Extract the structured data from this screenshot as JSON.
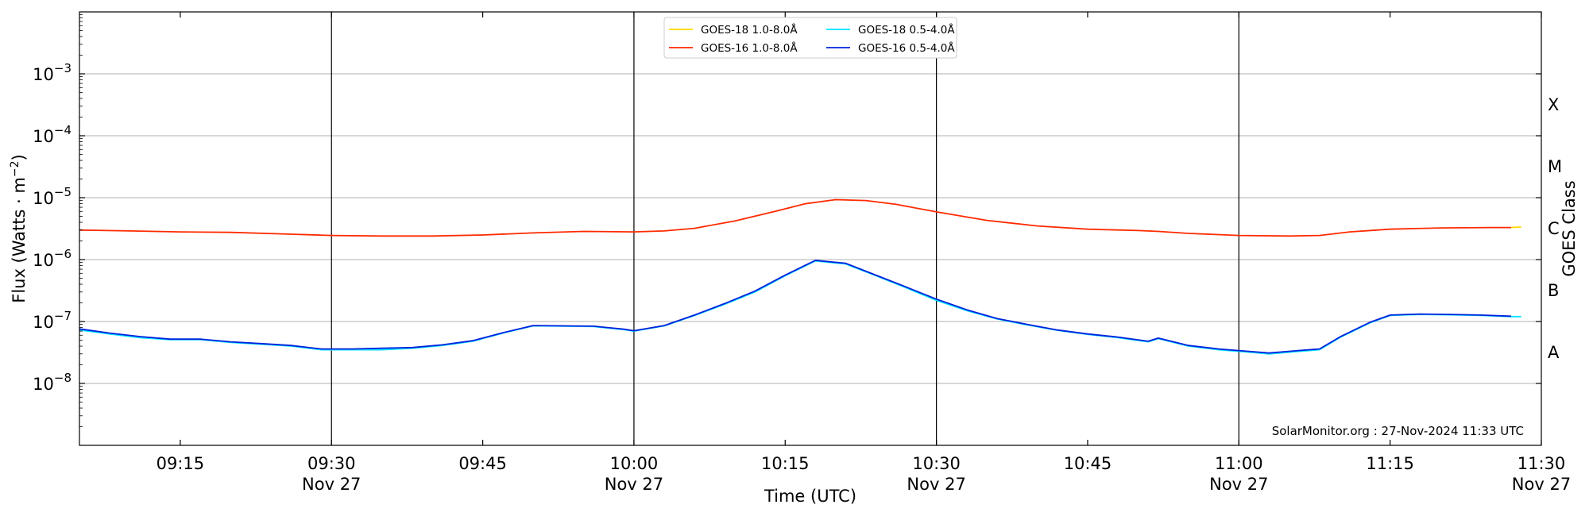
{
  "chart_data": {
    "type": "line",
    "title": "",
    "xlabel": "Time (UTC)",
    "ylabel": "Flux (Watts · m",
    "ylabel_exponent": "−2",
    "ylabel_close": ")",
    "right_ylabel": "GOES Class",
    "y_scale": "log",
    "ylim": [
      1e-09,
      0.01
    ],
    "xlim": [
      "09:05",
      "11:30"
    ],
    "y_ticks": [
      {
        "value": 1e-08,
        "base": "10",
        "exp": "−8"
      },
      {
        "value": 1e-07,
        "base": "10",
        "exp": "−7"
      },
      {
        "value": 1e-06,
        "base": "10",
        "exp": "−6"
      },
      {
        "value": 1e-05,
        "base": "10",
        "exp": "−5"
      },
      {
        "value": 0.0001,
        "base": "10",
        "exp": "−4"
      },
      {
        "value": 0.001,
        "base": "10",
        "exp": "−3"
      }
    ],
    "x_ticks": [
      {
        "time": "09:15",
        "label": "09:15",
        "date": ""
      },
      {
        "time": "09:30",
        "label": "09:30",
        "date": "Nov 27"
      },
      {
        "time": "09:45",
        "label": "09:45",
        "date": ""
      },
      {
        "time": "10:00",
        "label": "10:00",
        "date": "Nov 27"
      },
      {
        "time": "10:15",
        "label": "10:15",
        "date": ""
      },
      {
        "time": "10:30",
        "label": "10:30",
        "date": "Nov 27"
      },
      {
        "time": "10:45",
        "label": "10:45",
        "date": ""
      },
      {
        "time": "11:00",
        "label": "11:00",
        "date": "Nov 27"
      },
      {
        "time": "11:15",
        "label": "11:15",
        "date": ""
      },
      {
        "time": "11:30",
        "label": "11:30",
        "date": "Nov 27"
      }
    ],
    "vertical_lines": [
      "09:30",
      "10:00",
      "10:30",
      "11:00"
    ],
    "goes_classes": [
      {
        "label": "A",
        "min": 1e-08
      },
      {
        "label": "B",
        "min": 1e-07
      },
      {
        "label": "C",
        "min": 1e-06
      },
      {
        "label": "M",
        "min": 1e-05
      },
      {
        "label": "X",
        "min": 0.0001
      }
    ],
    "grid": "horizontal at decades",
    "legend_position": "top-center",
    "credit": "SolarMonitor.org : 27-Nov-2024 11:33 UTC",
    "series": [
      {
        "name": "GOES-18 1.0-8.0Å",
        "color": "#ffd700",
        "data": [
          [
            "11:27",
            3.3e-06
          ],
          [
            "11:28",
            3.35e-06
          ]
        ]
      },
      {
        "name": "GOES-18 0.5-4.0Å",
        "color": "#00e5ff",
        "data": [
          [
            "09:05",
            7.3e-08
          ],
          [
            "09:08",
            6.3e-08
          ],
          [
            "09:11",
            5.5e-08
          ],
          [
            "09:14",
            5.1e-08
          ],
          [
            "09:17",
            5.1e-08
          ],
          [
            "09:20",
            4.6e-08
          ],
          [
            "09:23",
            4.3e-08
          ],
          [
            "09:26",
            4e-08
          ],
          [
            "09:29",
            3.5e-08
          ],
          [
            "09:32",
            3.5e-08
          ],
          [
            "09:35",
            3.5e-08
          ],
          [
            "09:38",
            3.7e-08
          ],
          [
            "09:41",
            4.1e-08
          ],
          [
            "09:44",
            4.8e-08
          ],
          [
            "09:47",
            6.5e-08
          ],
          [
            "09:50",
            8.5e-08
          ],
          [
            "09:53",
            8.4e-08
          ],
          [
            "09:56",
            8.3e-08
          ],
          [
            "09:59",
            7.4e-08
          ],
          [
            "10:00",
            7e-08
          ],
          [
            "10:03",
            8.5e-08
          ],
          [
            "10:06",
            1.25e-07
          ],
          [
            "10:09",
            1.9e-07
          ],
          [
            "10:12",
            3e-07
          ],
          [
            "10:15",
            5.5e-07
          ],
          [
            "10:18",
            9.5e-07
          ],
          [
            "10:21",
            8.5e-07
          ],
          [
            "10:24",
            5.5e-07
          ],
          [
            "10:27",
            3.5e-07
          ],
          [
            "10:30",
            2.2e-07
          ],
          [
            "10:33",
            1.5e-07
          ],
          [
            "10:36",
            1.1e-07
          ],
          [
            "10:39",
            8.8e-08
          ],
          [
            "10:42",
            7.2e-08
          ],
          [
            "10:45",
            6.2e-08
          ],
          [
            "10:48",
            5.5e-08
          ],
          [
            "10:51",
            4.7e-08
          ],
          [
            "10:52",
            5.3e-08
          ],
          [
            "10:55",
            4e-08
          ],
          [
            "10:58",
            3.5e-08
          ],
          [
            "11:01",
            3.2e-08
          ],
          [
            "11:03",
            3e-08
          ],
          [
            "11:06",
            3.3e-08
          ],
          [
            "11:08",
            3.5e-08
          ],
          [
            "11:10",
            5.5e-08
          ],
          [
            "11:13",
            9.5e-08
          ],
          [
            "11:15",
            1.25e-07
          ],
          [
            "11:18",
            1.3e-07
          ],
          [
            "11:21",
            1.28e-07
          ],
          [
            "11:24",
            1.25e-07
          ],
          [
            "11:27",
            1.2e-07
          ],
          [
            "11:28",
            1.2e-07
          ]
        ]
      },
      {
        "name": "GOES-16 1.0-8.0Å",
        "color": "#ff2a00",
        "data": [
          [
            "09:05",
            3e-06
          ],
          [
            "09:10",
            2.9e-06
          ],
          [
            "09:15",
            2.8e-06
          ],
          [
            "09:20",
            2.75e-06
          ],
          [
            "09:25",
            2.6e-06
          ],
          [
            "09:30",
            2.45e-06
          ],
          [
            "09:35",
            2.4e-06
          ],
          [
            "09:40",
            2.4e-06
          ],
          [
            "09:45",
            2.5e-06
          ],
          [
            "09:50",
            2.7e-06
          ],
          [
            "09:55",
            2.85e-06
          ],
          [
            "10:00",
            2.8e-06
          ],
          [
            "10:03",
            2.9e-06
          ],
          [
            "10:06",
            3.2e-06
          ],
          [
            "10:10",
            4.2e-06
          ],
          [
            "10:14",
            6e-06
          ],
          [
            "10:17",
            8e-06
          ],
          [
            "10:20",
            9.3e-06
          ],
          [
            "10:23",
            9e-06
          ],
          [
            "10:26",
            7.8e-06
          ],
          [
            "10:30",
            5.9e-06
          ],
          [
            "10:35",
            4.3e-06
          ],
          [
            "10:40",
            3.5e-06
          ],
          [
            "10:45",
            3.1e-06
          ],
          [
            "10:50",
            2.95e-06
          ],
          [
            "10:52",
            2.85e-06
          ],
          [
            "10:55",
            2.65e-06
          ],
          [
            "11:00",
            2.45e-06
          ],
          [
            "11:05",
            2.4e-06
          ],
          [
            "11:08",
            2.45e-06
          ],
          [
            "11:11",
            2.8e-06
          ],
          [
            "11:15",
            3.1e-06
          ],
          [
            "11:20",
            3.25e-06
          ],
          [
            "11:25",
            3.3e-06
          ],
          [
            "11:27",
            3.3e-06
          ]
        ]
      },
      {
        "name": "GOES-16 0.5-4.0Å",
        "color": "#0022dd",
        "data": [
          [
            "09:05",
            7.6e-08
          ],
          [
            "09:08",
            6.5e-08
          ],
          [
            "09:11",
            5.7e-08
          ],
          [
            "09:14",
            5.2e-08
          ],
          [
            "09:17",
            5.2e-08
          ],
          [
            "09:20",
            4.7e-08
          ],
          [
            "09:23",
            4.4e-08
          ],
          [
            "09:26",
            4.1e-08
          ],
          [
            "09:29",
            3.6e-08
          ],
          [
            "09:32",
            3.6e-08
          ],
          [
            "09:35",
            3.7e-08
          ],
          [
            "09:38",
            3.8e-08
          ],
          [
            "09:41",
            4.2e-08
          ],
          [
            "09:44",
            4.9e-08
          ],
          [
            "09:47",
            6.6e-08
          ],
          [
            "09:50",
            8.6e-08
          ],
          [
            "09:53",
            8.5e-08
          ],
          [
            "09:56",
            8.4e-08
          ],
          [
            "09:59",
            7.5e-08
          ],
          [
            "10:00",
            7.1e-08
          ],
          [
            "10:03",
            8.6e-08
          ],
          [
            "10:06",
            1.27e-07
          ],
          [
            "10:09",
            1.95e-07
          ],
          [
            "10:12",
            3.1e-07
          ],
          [
            "10:15",
            5.6e-07
          ],
          [
            "10:18",
            9.7e-07
          ],
          [
            "10:21",
            8.7e-07
          ],
          [
            "10:24",
            5.6e-07
          ],
          [
            "10:27",
            3.6e-07
          ],
          [
            "10:30",
            2.3e-07
          ],
          [
            "10:33",
            1.55e-07
          ],
          [
            "10:36",
            1.12e-07
          ],
          [
            "10:39",
            9e-08
          ],
          [
            "10:42",
            7.3e-08
          ],
          [
            "10:45",
            6.3e-08
          ],
          [
            "10:48",
            5.6e-08
          ],
          [
            "10:51",
            4.8e-08
          ],
          [
            "10:52",
            5.4e-08
          ],
          [
            "10:55",
            4.1e-08
          ],
          [
            "10:58",
            3.6e-08
          ],
          [
            "11:01",
            3.3e-08
          ],
          [
            "11:03",
            3.1e-08
          ],
          [
            "11:06",
            3.4e-08
          ],
          [
            "11:08",
            3.6e-08
          ],
          [
            "11:10",
            5.6e-08
          ],
          [
            "11:13",
            9.7e-08
          ],
          [
            "11:15",
            1.27e-07
          ],
          [
            "11:18",
            1.32e-07
          ],
          [
            "11:21",
            1.3e-07
          ],
          [
            "11:24",
            1.27e-07
          ],
          [
            "11:27",
            1.22e-07
          ]
        ]
      }
    ],
    "legend": [
      {
        "name": "GOES-18 1.0-8.0Å",
        "color": "#ffd700"
      },
      {
        "name": "GOES-16 1.0-8.0Å",
        "color": "#ff2a00"
      },
      {
        "name": "GOES-18 0.5-4.0Å",
        "color": "#00e5ff"
      },
      {
        "name": "GOES-16 0.5-4.0Å",
        "color": "#0022dd"
      }
    ]
  }
}
